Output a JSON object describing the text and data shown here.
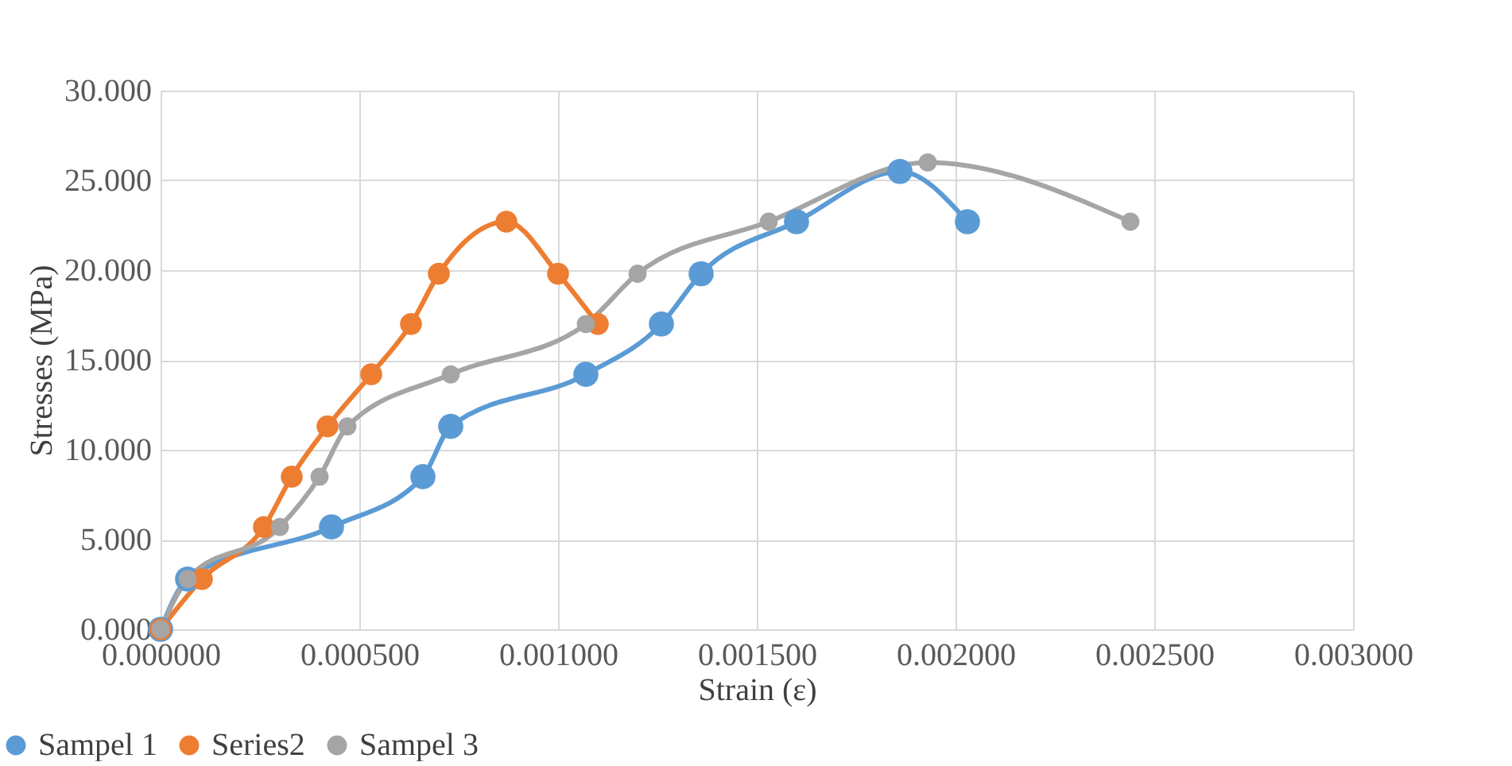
{
  "chart_data": {
    "type": "line",
    "xlabel": "Strain (ε)",
    "ylabel": "Stresses (MPa)",
    "grid": true,
    "legend": "bottom left",
    "marker": "circle",
    "line_style": "solid",
    "xlim": [
      0,
      0.003
    ],
    "ylim": [
      0,
      30
    ],
    "xticks": [
      {
        "value": 0,
        "label": "0.000000"
      },
      {
        "value": 0.0005,
        "label": "0.000500"
      },
      {
        "value": 0.001,
        "label": "0.001000"
      },
      {
        "value": 0.0015,
        "label": "0.001500"
      },
      {
        "value": 0.002,
        "label": "0.002000"
      },
      {
        "value": 0.0025,
        "label": "0.002500"
      },
      {
        "value": 0.003,
        "label": "0.003000"
      }
    ],
    "yticks": [
      {
        "value": 0,
        "label": "0.000"
      },
      {
        "value": 5,
        "label": "5.000"
      },
      {
        "value": 10,
        "label": "10.000"
      },
      {
        "value": 15,
        "label": "15.000"
      },
      {
        "value": 20,
        "label": "20.000"
      },
      {
        "value": 25,
        "label": "25.000"
      },
      {
        "value": 30,
        "label": "30.000"
      }
    ],
    "series": [
      {
        "name": "Sampel 1",
        "color": "#5b9bd5",
        "x": [
          0,
          6.8e-05,
          0.00043,
          0.00066,
          0.00073,
          0.00107,
          0.00126,
          0.00136,
          0.0016,
          0.00186,
          0.00203
        ],
        "values": [
          0,
          2.8,
          5.7,
          8.5,
          11.3,
          14.2,
          17.0,
          19.8,
          22.7,
          25.5,
          22.7
        ]
      },
      {
        "name": "Series2",
        "color": "#ed7d31",
        "x": [
          0,
          0.000104,
          0.00026,
          0.00033,
          0.00042,
          0.00053,
          0.00063,
          0.0007,
          0.00087,
          0.001,
          0.0011
        ],
        "values": [
          0,
          2.8,
          5.7,
          8.5,
          11.3,
          14.2,
          17.0,
          19.8,
          22.7,
          19.8,
          17.0
        ]
      },
      {
        "name": "Sampel 3",
        "color": "#a5a5a5",
        "x": [
          0,
          6.8e-05,
          0.0003,
          0.0004,
          0.00047,
          0.00073,
          0.00107,
          0.0012,
          0.00153,
          0.00193,
          0.00244
        ],
        "values": [
          0,
          2.8,
          5.7,
          8.5,
          11.3,
          14.2,
          17.0,
          19.8,
          22.7,
          26.0,
          22.7
        ]
      }
    ]
  }
}
